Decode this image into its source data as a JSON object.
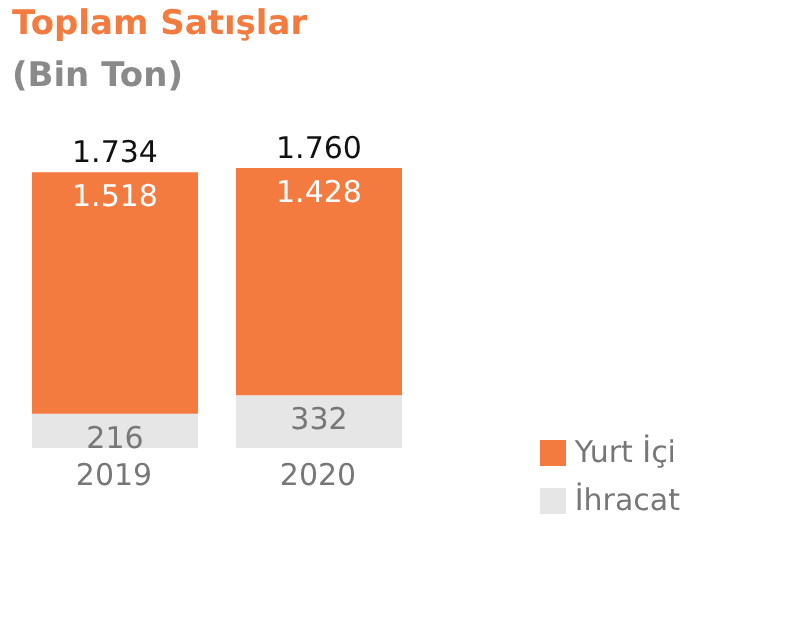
{
  "chart_data": {
    "type": "bar",
    "title": "Toplam Satışlar",
    "subtitle": "(Bin Ton)",
    "categories": [
      "2019",
      "2020"
    ],
    "stacked": true,
    "legend": "bottom right",
    "series": [
      {
        "name": "İhracat",
        "color": "#e6e6e6",
        "values": [
          216,
          332
        ],
        "value_labels": [
          "216",
          "332"
        ]
      },
      {
        "name": "Yurt İçi",
        "color": "#f47b3f",
        "values": [
          1518,
          1428
        ],
        "value_labels": [
          "1.518",
          "1.428"
        ]
      }
    ],
    "totals": [
      "1.734",
      "1.760"
    ]
  }
}
